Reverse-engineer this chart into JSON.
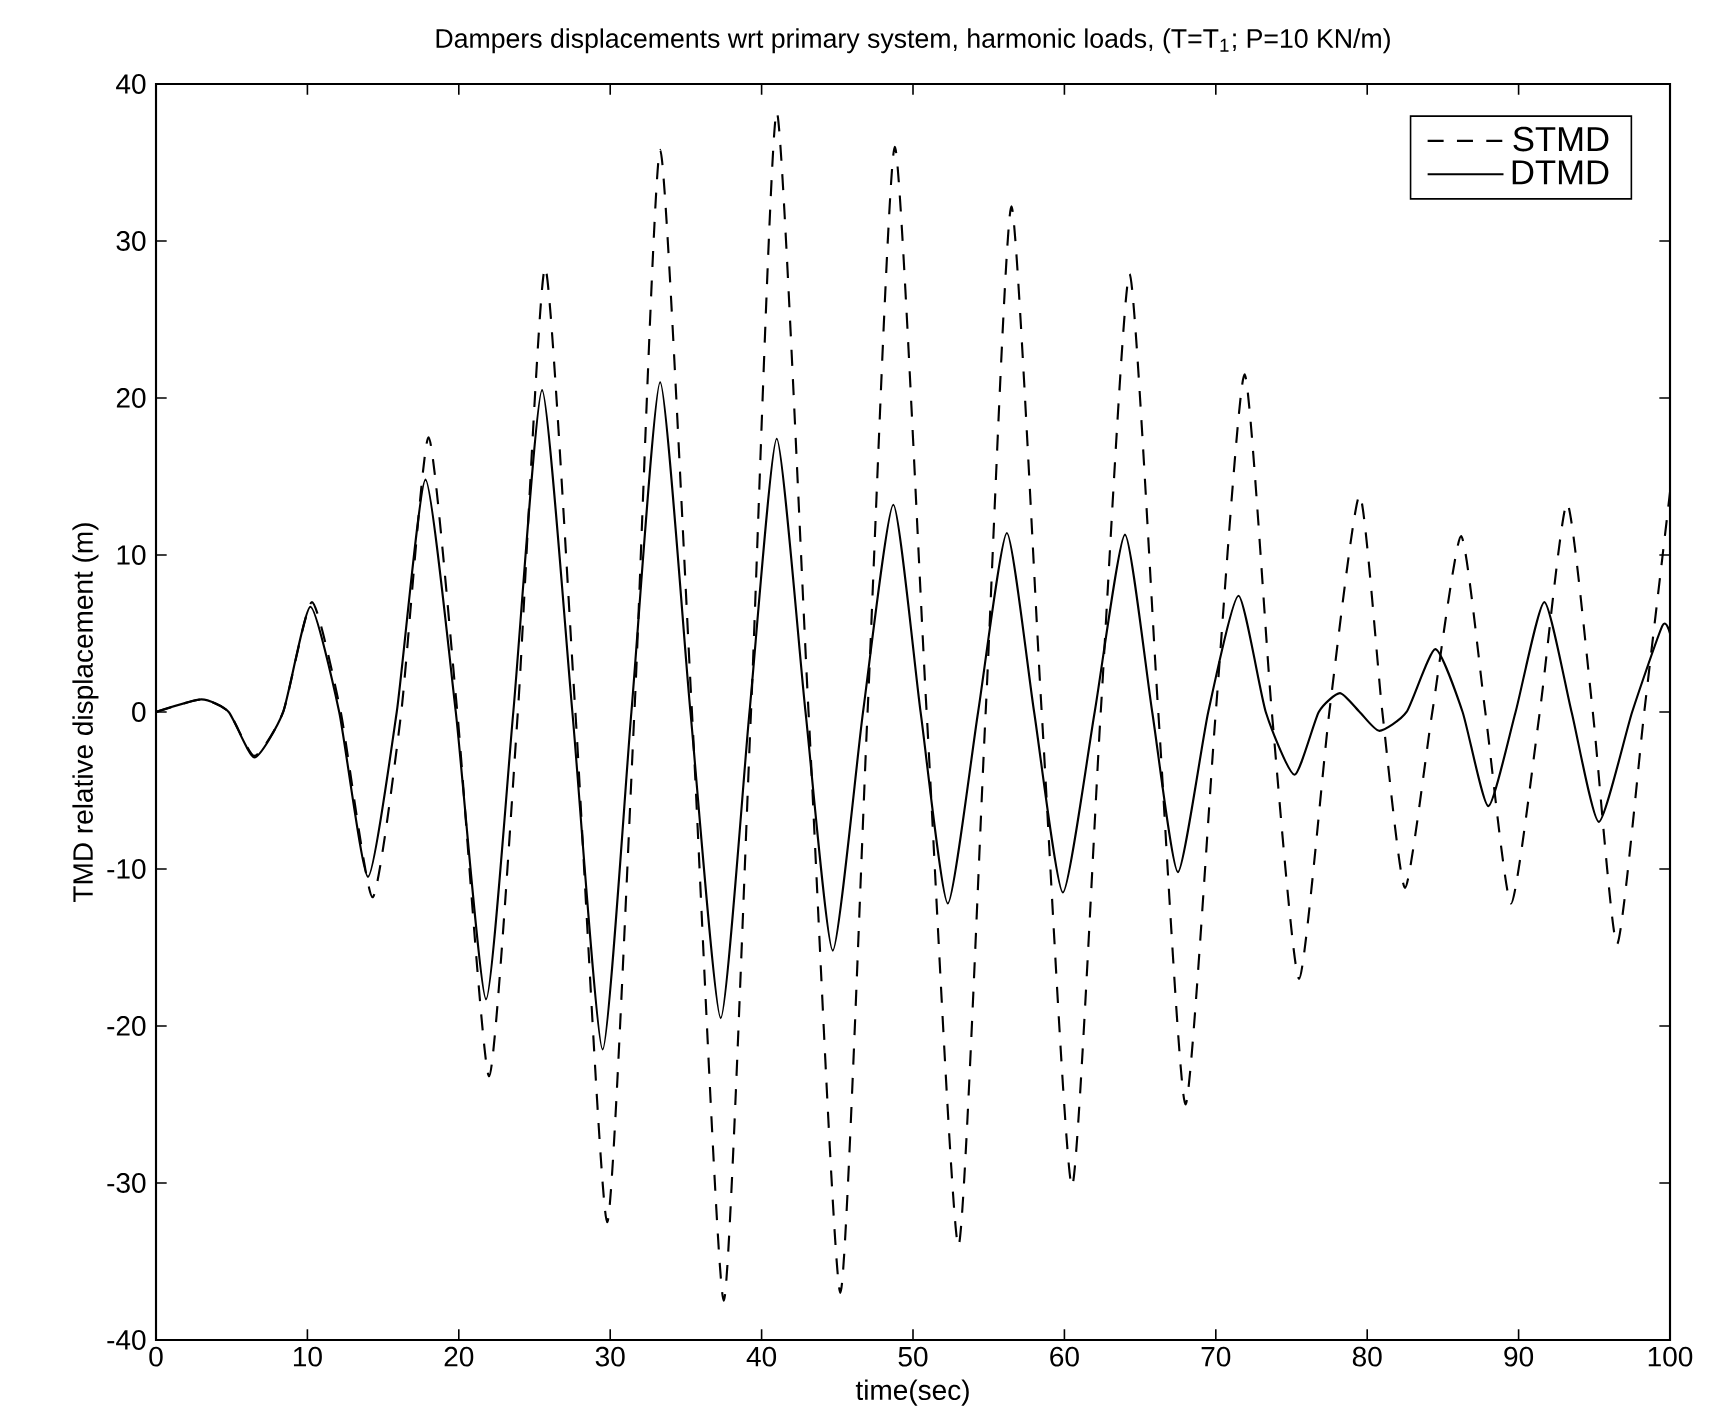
{
  "chart_data": {
    "type": "line",
    "title": "Dampers displacements wrt primary system, harmonic loads, (T=T$_{1}$; P=10 KN/m)",
    "xlabel": "time(sec)",
    "ylabel": "TMD relative displacement (m)",
    "xlim": [
      0,
      100
    ],
    "ylim": [
      -40,
      40
    ],
    "xticks": [
      0,
      10,
      20,
      30,
      40,
      50,
      60,
      70,
      80,
      90,
      100
    ],
    "yticks": [
      -40,
      -30,
      -20,
      -10,
      0,
      10,
      20,
      30,
      40
    ],
    "grid": false,
    "legend": "top right",
    "marker": "none",
    "series": [
      {
        "name": "STMD",
        "color": "#000000",
        "line_style": "dashed",
        "x": [
          0,
          3,
          4.8,
          6.5,
          8.4,
          10.3,
          12.2,
          14.3,
          16.2,
          18,
          19.9,
          22,
          23.9,
          25.7,
          27.7,
          29.8,
          31.6,
          33.3,
          35.4,
          37.5,
          39.3,
          41,
          43.1,
          45.2,
          47,
          48.8,
          50.9,
          53,
          54.8,
          56.5,
          58.5,
          60.5,
          62.4,
          64.3,
          66.2,
          68,
          70,
          71.9,
          73.7,
          75.5,
          77.5,
          79.5,
          81,
          82.5,
          84.3,
          86.2,
          87.8,
          89.5,
          91.4,
          93.2,
          94.9,
          96.5,
          98.3,
          100
        ],
        "values": [
          0,
          0.8,
          0,
          -2.8,
          0,
          7,
          0,
          -11.8,
          0,
          17.5,
          0,
          -23.2,
          0,
          28.3,
          0,
          -32.5,
          0,
          35.8,
          0,
          -37.5,
          0,
          38.2,
          0,
          -37,
          0,
          36,
          0,
          -34,
          0,
          32.2,
          0,
          -30.2,
          0,
          27.9,
          0,
          -25,
          0,
          21.5,
          0,
          -17,
          0,
          13.8,
          0,
          -11.2,
          0,
          11.2,
          0,
          -12.2,
          0,
          13.3,
          0,
          -14.8,
          0,
          14
        ]
      },
      {
        "name": "DTMD",
        "color": "#000000",
        "line_style": "solid",
        "x": [
          0,
          3,
          4.8,
          6.5,
          8.4,
          10.2,
          12.1,
          14,
          15.9,
          17.8,
          19.8,
          21.8,
          23.6,
          25.5,
          27.5,
          29.5,
          31.4,
          33.3,
          35.3,
          37.3,
          39.2,
          41,
          42.9,
          44.7,
          46.7,
          48.7,
          50.5,
          52.3,
          54.3,
          56.2,
          58,
          59.9,
          62,
          64,
          65.8,
          67.5,
          69.5,
          71.5,
          73.3,
          75.2,
          76.8,
          78.2,
          79.5,
          80.8,
          82.6,
          84.5,
          86.3,
          88,
          89.8,
          91.7,
          93.5,
          95.3,
          97.5,
          99.5,
          100
        ],
        "values": [
          0,
          0.8,
          0,
          -2.9,
          0,
          6.7,
          0,
          -10.5,
          0,
          14.8,
          0,
          -18.3,
          0,
          20.5,
          0,
          -21.5,
          0,
          21,
          0,
          -19.5,
          0,
          17.4,
          0,
          -15.2,
          0,
          13.2,
          0,
          -12.2,
          0,
          11.4,
          0,
          -11.5,
          0,
          11.3,
          0,
          -10.2,
          0,
          7.4,
          0,
          -4,
          0,
          1.2,
          0,
          -1.2,
          0,
          4,
          0,
          -6,
          0,
          7,
          0,
          -7,
          0,
          5.5,
          5
        ]
      }
    ]
  }
}
